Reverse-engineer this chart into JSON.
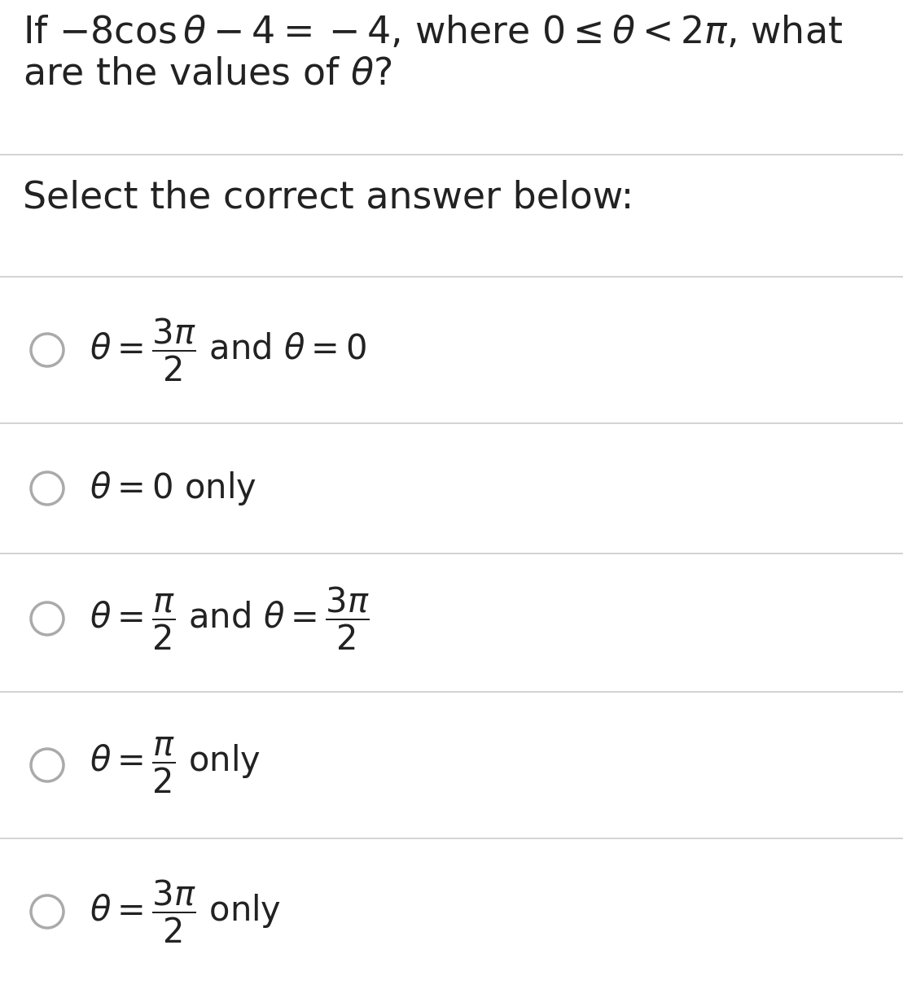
{
  "bg_color": "#ffffff",
  "line_color": "#cccccc",
  "text_color": "#222222",
  "circle_color": "#aaaaaa",
  "question_line1": "If $-8\\cos\\theta - 4 = -4$, where $0 \\leq \\theta < 2\\pi$, what",
  "question_line2": "are the values of $\\theta$?",
  "prompt": "Select the correct answer below:",
  "options": [
    "$\\theta = \\dfrac{3\\pi}{2}$ and $\\theta = 0$",
    "$\\theta = 0$ only",
    "$\\theta = \\dfrac{\\pi}{2}$ and $\\theta = \\dfrac{3\\pi}{2}$",
    "$\\theta = \\dfrac{\\pi}{2}$ only",
    "$\\theta = \\dfrac{3\\pi}{2}$ only"
  ],
  "figsize": [
    11.09,
    12.31
  ],
  "dpi": 100,
  "q_fontsize": 33,
  "prompt_fontsize": 33,
  "opt_fontsize": 30
}
